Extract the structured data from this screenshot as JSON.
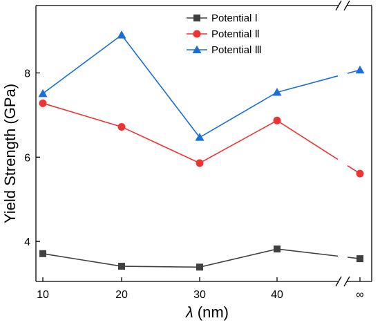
{
  "chart_data": {
    "type": "line",
    "xlabel_symbol": "λ",
    "xlabel_unit": "(nm)",
    "ylabel": "Yield Strength (GPa)",
    "categories": [
      "10",
      "20",
      "30",
      "40",
      "∞"
    ],
    "x": [
      10,
      20,
      30,
      40,
      "∞"
    ],
    "y_ticks": [
      4,
      6,
      8
    ],
    "ylim": [
      3.05,
      9.6
    ],
    "axis_break": "between 40 and ∞ (top and bottom axes)",
    "grid": false,
    "legend_position": "top-center",
    "series": [
      {
        "name": "Potential Ⅰ",
        "color": "#404040",
        "marker": "square",
        "values": [
          3.71,
          3.41,
          3.39,
          3.82,
          3.59
        ]
      },
      {
        "name": "Potential Ⅱ",
        "color": "#ee3333",
        "marker": "circle",
        "values": [
          7.28,
          6.72,
          5.86,
          6.87,
          5.61
        ]
      },
      {
        "name": "Potential Ⅲ",
        "color": "#1a6ed8",
        "marker": "triangle",
        "values": [
          7.51,
          8.9,
          6.47,
          7.54,
          8.07
        ]
      }
    ]
  }
}
